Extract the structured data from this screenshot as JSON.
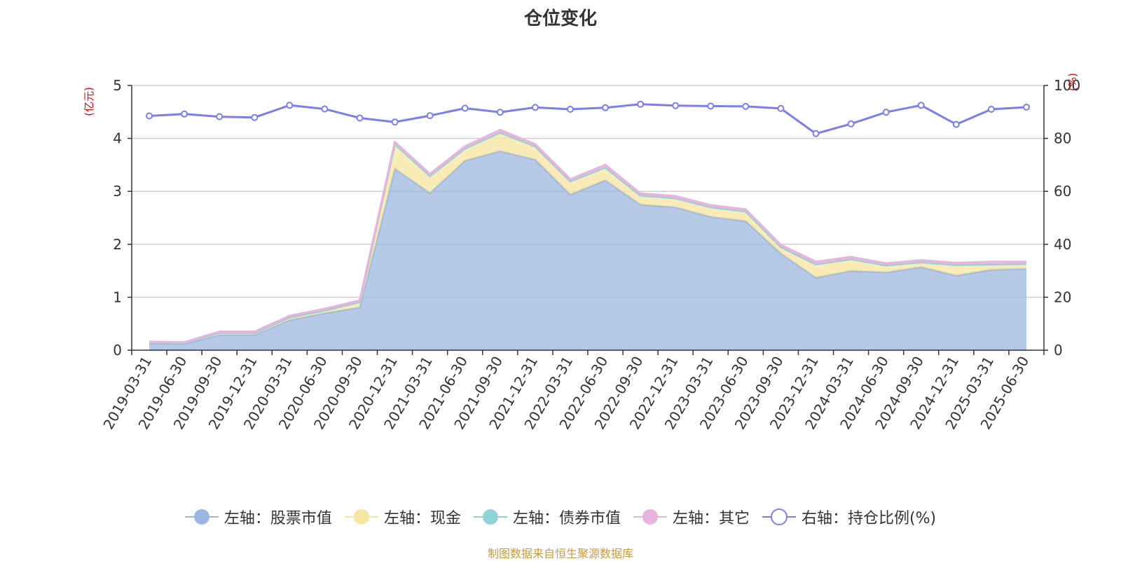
{
  "chart_data": {
    "type": "area",
    "title": "仓位变化",
    "left_axis_unit": "(亿元)",
    "right_axis_unit": "(%)",
    "left_ylim": [
      0,
      5
    ],
    "right_ylim": [
      0,
      100
    ],
    "left_ticks": [
      "0",
      "1",
      "2",
      "3",
      "4",
      "5"
    ],
    "right_ticks": [
      "0",
      "20",
      "40",
      "60",
      "80",
      "100"
    ],
    "grid": true,
    "legend_position": "bottom",
    "categories": [
      "2019-03-31",
      "2019-06-30",
      "2019-09-30",
      "2019-12-31",
      "2020-03-31",
      "2020-06-30",
      "2020-09-30",
      "2020-12-31",
      "2021-03-31",
      "2021-06-30",
      "2021-09-30",
      "2021-12-31",
      "2022-03-31",
      "2022-06-30",
      "2022-09-30",
      "2022-12-31",
      "2023-03-31",
      "2023-06-30",
      "2023-09-30",
      "2023-12-31",
      "2024-03-31",
      "2024-06-30",
      "2024-09-30",
      "2024-12-31",
      "2025-03-31",
      "2025-06-30"
    ],
    "series": [
      {
        "name": "左轴：股票市值",
        "axis": "left",
        "kind": "stacked-area",
        "color": "#9ab5df",
        "values": [
          0.13,
          0.12,
          0.29,
          0.29,
          0.57,
          0.7,
          0.81,
          3.43,
          2.97,
          3.58,
          3.76,
          3.6,
          2.94,
          3.21,
          2.75,
          2.7,
          2.52,
          2.44,
          1.83,
          1.37,
          1.5,
          1.47,
          1.57,
          1.41,
          1.52,
          1.54
        ]
      },
      {
        "name": "左轴：现金",
        "axis": "left",
        "kind": "stacked-area",
        "color": "#f7e5a2",
        "values": [
          0.02,
          0.02,
          0.04,
          0.04,
          0.05,
          0.05,
          0.1,
          0.46,
          0.32,
          0.23,
          0.35,
          0.25,
          0.25,
          0.24,
          0.17,
          0.17,
          0.18,
          0.18,
          0.12,
          0.25,
          0.22,
          0.13,
          0.09,
          0.2,
          0.1,
          0.09
        ]
      },
      {
        "name": "左轴：债券市值",
        "axis": "left",
        "kind": "stacked-area",
        "color": "#8fd3d6",
        "values": [
          0,
          0,
          0,
          0,
          0,
          0,
          0,
          0,
          0,
          0,
          0,
          0,
          0,
          0,
          0,
          0,
          0,
          0,
          0,
          0,
          0,
          0,
          0,
          0,
          0,
          0
        ]
      },
      {
        "name": "左轴：其它",
        "axis": "left",
        "kind": "stacked-area",
        "color": "#e6b4dc",
        "values": [
          0.01,
          0.01,
          0.02,
          0.02,
          0.03,
          0.03,
          0.03,
          0.04,
          0.04,
          0.04,
          0.05,
          0.04,
          0.04,
          0.05,
          0.04,
          0.04,
          0.04,
          0.04,
          0.04,
          0.05,
          0.04,
          0.04,
          0.04,
          0.04,
          0.05,
          0.04
        ]
      },
      {
        "name": "右轴：持仓比例(%)",
        "axis": "right",
        "kind": "line",
        "color": "#7b7df0",
        "values": [
          88.5,
          89.2,
          88.2,
          87.9,
          92.5,
          91.1,
          87.7,
          86.2,
          88.6,
          91.4,
          89.9,
          91.7,
          91.0,
          91.6,
          92.9,
          92.4,
          92.2,
          92.1,
          91.3,
          81.8,
          85.5,
          89.9,
          92.5,
          85.3,
          91.0,
          91.8
        ]
      }
    ]
  },
  "source_note": "制图数据来自恒生聚源数据库"
}
